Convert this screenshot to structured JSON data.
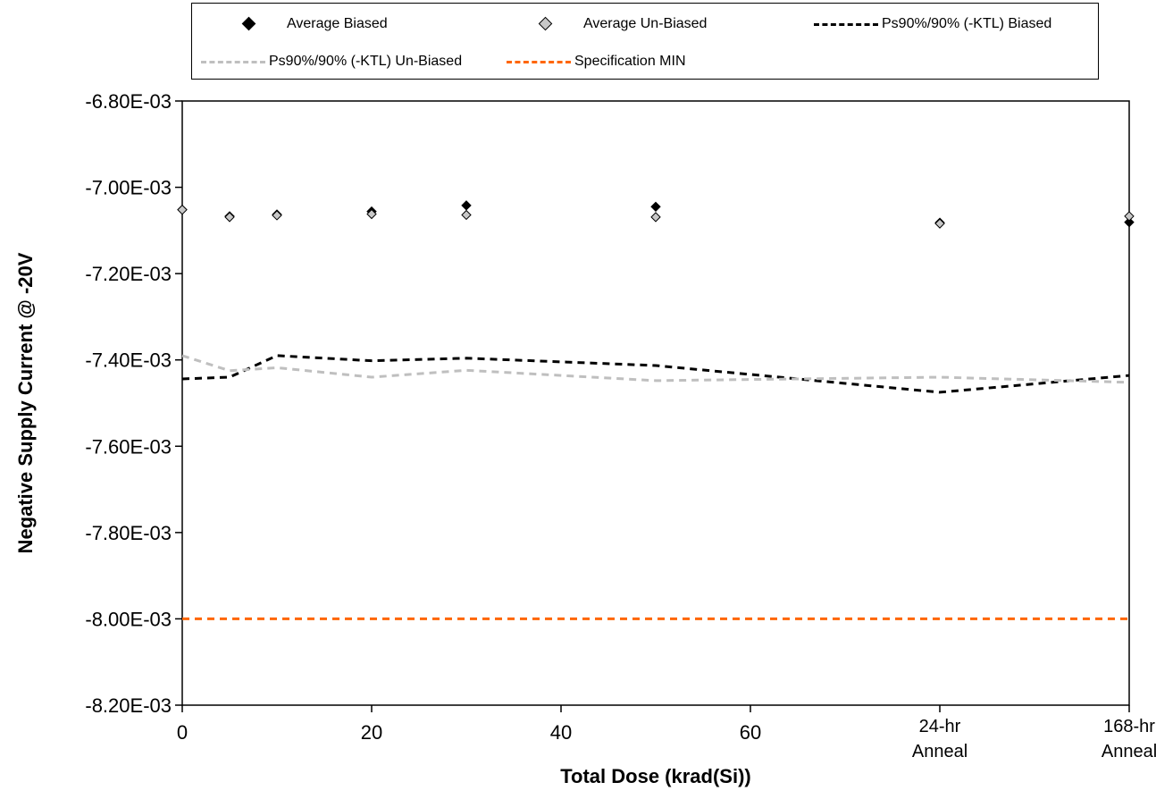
{
  "chart_data": {
    "type": "line",
    "xlabel": "Total Dose (krad(Si))",
    "ylabel": "Negative Supply Current @ -20V",
    "ylim": [
      -0.0082,
      -0.0068
    ],
    "yticks": [
      -0.0068,
      -0.007,
      -0.0072,
      -0.0074,
      -0.0076,
      -0.0078,
      -0.008,
      -0.0082
    ],
    "ytick_labels": [
      "-6.80E-03",
      "-7.00E-03",
      "-7.20E-03",
      "-7.40E-03",
      "-7.60E-03",
      "-7.80E-03",
      "-8.00E-03",
      "-8.20E-03"
    ],
    "xticks": [
      {
        "pos": 0,
        "label": [
          "0"
        ]
      },
      {
        "pos": 20,
        "label": [
          "20"
        ]
      },
      {
        "pos": 40,
        "label": [
          "40"
        ]
      },
      {
        "pos": 60,
        "label": [
          "60"
        ]
      },
      {
        "pos": 80,
        "label": [
          "24-hr",
          "Anneal"
        ]
      },
      {
        "pos": 100,
        "label": [
          "168-hr",
          "Anneal"
        ]
      }
    ],
    "xlim": [
      0,
      100
    ],
    "grid": false,
    "legend_position": "top",
    "series": [
      {
        "name": "Average Biased",
        "style": "marker",
        "color": "#000000",
        "x": [
          0,
          5,
          10,
          20,
          30,
          50,
          80,
          100
        ],
        "y": [
          -0.007052,
          -0.007067,
          -0.007063,
          -0.007056,
          -0.007042,
          -0.007045,
          -0.007082,
          -0.007081
        ]
      },
      {
        "name": "Average Un-Biased",
        "style": "marker",
        "color": "#c8c8c8",
        "x": [
          0,
          5,
          10,
          20,
          30,
          50,
          80,
          100
        ],
        "y": [
          -0.007052,
          -0.007069,
          -0.007065,
          -0.007062,
          -0.007064,
          -0.007069,
          -0.007084,
          -0.007067
        ]
      },
      {
        "name": "Ps90%/90% (-KTL) Biased",
        "style": "dashed",
        "color": "#000000",
        "x": [
          0,
          5,
          10,
          20,
          30,
          50,
          80,
          100
        ],
        "y": [
          -0.007444,
          -0.00744,
          -0.00739,
          -0.007402,
          -0.007396,
          -0.007413,
          -0.007475,
          -0.007436
        ]
      },
      {
        "name": "Ps90%/90% (-KTL) Un-Biased",
        "style": "dashed",
        "color": "#bfbfbf",
        "x": [
          0,
          5,
          10,
          20,
          30,
          50,
          80,
          100
        ],
        "y": [
          -0.00739,
          -0.007425,
          -0.007418,
          -0.00744,
          -0.007424,
          -0.007448,
          -0.00744,
          -0.007452
        ]
      },
      {
        "name": "Specification MIN",
        "style": "dashed",
        "color": "#ff6600",
        "x": [
          0,
          100
        ],
        "y": [
          -0.008,
          -0.008
        ]
      }
    ]
  }
}
